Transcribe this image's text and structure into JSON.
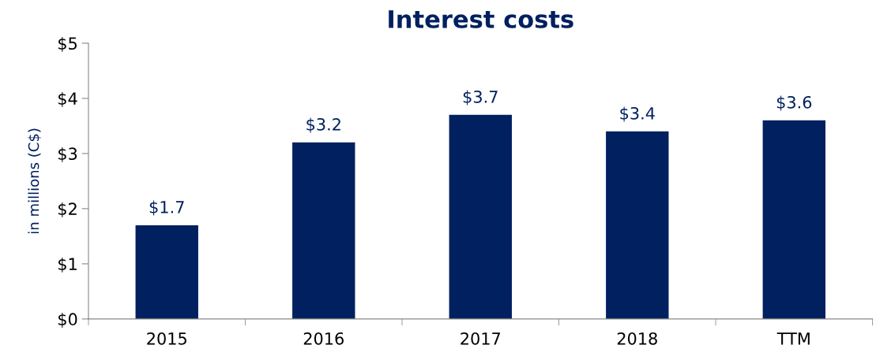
{
  "chart_data": {
    "type": "bar",
    "title": "Interest costs",
    "ylabel": "in millions (C$)",
    "categories": [
      "2015",
      "2016",
      "2017",
      "2018",
      "TTM"
    ],
    "values": [
      1.7,
      3.2,
      3.7,
      3.4,
      3.6
    ],
    "value_labels": [
      "$1.7",
      "$3.2",
      "$3.7",
      "$3.4",
      "$3.6"
    ],
    "color": "#002060",
    "ylim": [
      0,
      5
    ],
    "yticks": [
      {
        "value": 0,
        "label": "$0"
      },
      {
        "value": 1,
        "label": "$1"
      },
      {
        "value": 2,
        "label": "$2"
      },
      {
        "value": 3,
        "label": "$3"
      },
      {
        "value": 4,
        "label": "$4"
      },
      {
        "value": 5,
        "label": "$5"
      }
    ],
    "grid": false,
    "legend": false
  }
}
